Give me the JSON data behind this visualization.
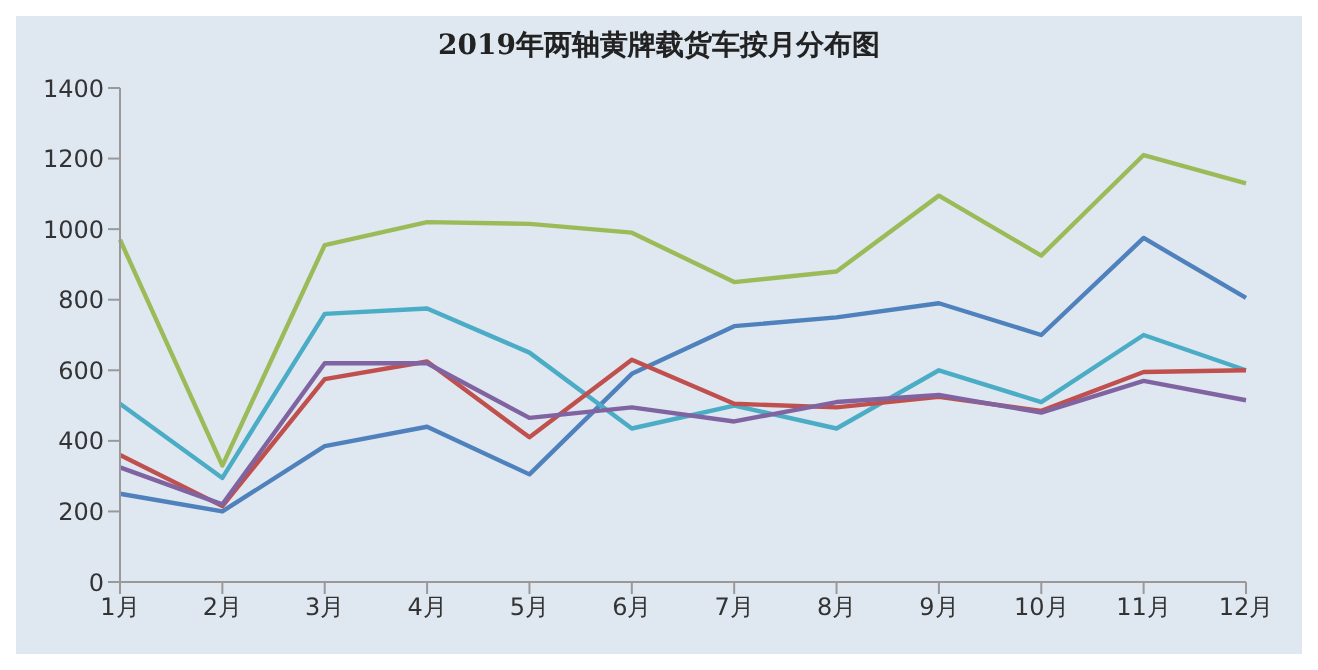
{
  "chart_data": {
    "type": "line",
    "title": "2019年两轴黄牌载货车按月分布图",
    "categories": [
      "1月",
      "2月",
      "3月",
      "4月",
      "5月",
      "6月",
      "7月",
      "8月",
      "9月",
      "10月",
      "11月",
      "12月"
    ],
    "series": [
      {
        "color": "#9bbb59",
        "values": [
          970,
          330,
          955,
          1020,
          1015,
          990,
          850,
          880,
          1095,
          925,
          1210,
          1130
        ]
      },
      {
        "color": "#4f81bd",
        "values": [
          250,
          200,
          385,
          440,
          305,
          590,
          725,
          750,
          790,
          700,
          975,
          805
        ]
      },
      {
        "color": "#4bacc6",
        "values": [
          505,
          295,
          760,
          775,
          650,
          435,
          500,
          435,
          600,
          510,
          700,
          600
        ]
      },
      {
        "color": "#c0504d",
        "values": [
          360,
          215,
          575,
          625,
          410,
          630,
          505,
          495,
          525,
          485,
          595,
          600
        ]
      },
      {
        "color": "#8064a2",
        "values": [
          325,
          220,
          620,
          620,
          465,
          495,
          455,
          510,
          530,
          480,
          570,
          515
        ]
      }
    ],
    "ylim": [
      0,
      1400
    ],
    "yticks": [
      0,
      200,
      400,
      600,
      800,
      1000,
      1200,
      1400
    ],
    "grid": false,
    "legend": false,
    "marker": "none",
    "line_style": "solid"
  }
}
